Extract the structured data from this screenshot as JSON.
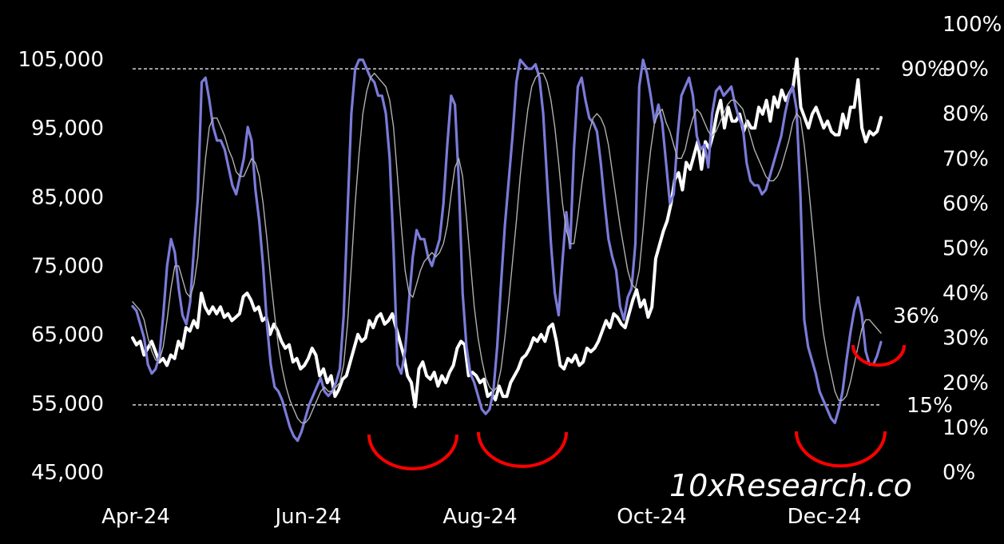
{
  "chart_data": {
    "type": "line",
    "title": "",
    "x_ticks": [
      "Apr-24",
      "Jun-24",
      "Aug-24",
      "Oct-24",
      "Dec-24"
    ],
    "y_left": {
      "ticks": [
        "105,000",
        "95,000",
        "85,000",
        "75,000",
        "65,000",
        "55,000",
        "45,000"
      ],
      "range": [
        45000,
        105000
      ]
    },
    "y_right": {
      "ticks": [
        "100%",
        "90%",
        "80%",
        "70%",
        "60%",
        "50%",
        "40%",
        "30%",
        "20%",
        "10%",
        "0%"
      ],
      "range": [
        0,
        100
      ]
    },
    "reference_lines": [
      {
        "axis": "right",
        "value": 90,
        "label": "90%",
        "style": "dashed"
      },
      {
        "axis": "right",
        "value": 15,
        "label": "15%",
        "style": "dashed"
      }
    ],
    "annotations": [
      {
        "text": "36%"
      }
    ],
    "watermark": "10xResearch.co",
    "series": [
      {
        "axis": "left",
        "color": "#ffffff",
        "values": [
          64500,
          63500,
          64000,
          62000,
          63000,
          64000,
          62500,
          61000,
          61500,
          60500,
          62000,
          61500,
          64000,
          63000,
          66000,
          65500,
          67000,
          66000,
          71000,
          69000,
          68000,
          69000,
          68000,
          69000,
          67500,
          68000,
          67000,
          67500,
          68000,
          70500,
          71000,
          70000,
          68500,
          69000,
          67000,
          67500,
          65000,
          66500,
          65500,
          64000,
          63000,
          63500,
          61000,
          61500,
          60000,
          60500,
          61500,
          63000,
          62000,
          59000,
          60000,
          58000,
          59000,
          56000,
          57000,
          58500,
          59000,
          61000,
          63000,
          65000,
          64000,
          64500,
          67000,
          66000,
          67500,
          68000,
          66500,
          67000,
          68000,
          66000,
          64000,
          62000,
          59000,
          58000,
          54500,
          60000,
          61000,
          59000,
          58500,
          59500,
          57500,
          59000,
          58000,
          59500,
          60500,
          63000,
          64000,
          63500,
          59000,
          59500,
          59000,
          58000,
          58500,
          56000,
          56500,
          55500,
          57500,
          56000,
          56000,
          58000,
          59000,
          60000,
          61500,
          62000,
          63000,
          64500,
          64000,
          65000,
          64000,
          66000,
          66500,
          64000,
          60500,
          60000,
          61500,
          61000,
          62000,
          60500,
          61000,
          63000,
          62500,
          63000,
          64000,
          65500,
          67000,
          66000,
          68000,
          67500,
          66500,
          66000,
          68000,
          70000,
          71500,
          69000,
          70000,
          67500,
          69000,
          76000,
          78000,
          80000,
          81500,
          84000,
          87500,
          88500,
          86000,
          90000,
          89000,
          91000,
          93000,
          89000,
          93000,
          92000,
          94000,
          97000,
          99000,
          95000,
          98000,
          96000,
          96000,
          97000,
          94500,
          96000,
          95000,
          95000,
          98000,
          97000,
          99000,
          96000,
          99500,
          98000,
          100500,
          99000,
          100000,
          101000,
          105000,
          98000,
          96500,
          95000,
          97000,
          98000,
          96500,
          95000,
          96000,
          94500,
          94000,
          94000,
          97000,
          95000,
          98000,
          98000,
          102000,
          95000,
          93000,
          94500,
          94000,
          94500,
          96500
        ]
      },
      {
        "axis": "right",
        "color": "#7b7bd9",
        "values": [
          37,
          36,
          33,
          30,
          24,
          22,
          23,
          26,
          35,
          46,
          52,
          49,
          41,
          35,
          33,
          38,
          50,
          61,
          87,
          88,
          83,
          77,
          74,
          74,
          72,
          68,
          64,
          62,
          66,
          70,
          77,
          74,
          63,
          56,
          46,
          33,
          24,
          19,
          18,
          16,
          13,
          10,
          8,
          7,
          9,
          12,
          15,
          17,
          19,
          21,
          18,
          17,
          18,
          20,
          23,
          35,
          58,
          80,
          90,
          92,
          92,
          90,
          88,
          87,
          84,
          84,
          80,
          70,
          50,
          24,
          22,
          27,
          38,
          48,
          54,
          52,
          52,
          48,
          46,
          49,
          52,
          60,
          73,
          84,
          82,
          65,
          40,
          28,
          22,
          20,
          17,
          14,
          13,
          14,
          18,
          28,
          42,
          55,
          65,
          75,
          87,
          92,
          91,
          90,
          90,
          91,
          88,
          80,
          65,
          51,
          40,
          35,
          47,
          58,
          50,
          72,
          86,
          88,
          83,
          79,
          78,
          76,
          69,
          60,
          52,
          48,
          45,
          37,
          34,
          39,
          41,
          51,
          86,
          92,
          89,
          84,
          78,
          82,
          78,
          69,
          60,
          62,
          75,
          84,
          86,
          88,
          84,
          75,
          72,
          73,
          68,
          80,
          85,
          86,
          84,
          85,
          86,
          82,
          79,
          77,
          69,
          65,
          64,
          64,
          62,
          63,
          66,
          69,
          72,
          75,
          80,
          84,
          86,
          81,
          62,
          34,
          28,
          25,
          22,
          18,
          16,
          14,
          12,
          11,
          14,
          18,
          25,
          31,
          36,
          39,
          35,
          27,
          24,
          24,
          26,
          29
        ]
      },
      {
        "axis": "right",
        "color": "#b0b0b0",
        "values": [
          38,
          37,
          36,
          34,
          30,
          27,
          25,
          25,
          28,
          34,
          41,
          46,
          46,
          43,
          40,
          39,
          42,
          48,
          60,
          70,
          77,
          79,
          79,
          77,
          75,
          72,
          70,
          67,
          66,
          66,
          68,
          70,
          69,
          66,
          60,
          52,
          43,
          35,
          28,
          23,
          19,
          16,
          14,
          12,
          11,
          11,
          12,
          14,
          16,
          18,
          19,
          18,
          18,
          19,
          20,
          24,
          33,
          46,
          60,
          71,
          80,
          85,
          88,
          89,
          88,
          87,
          86,
          83,
          77,
          66,
          55,
          45,
          40,
          39,
          42,
          45,
          47,
          48,
          49,
          48,
          49,
          51,
          55,
          62,
          68,
          70,
          66,
          57,
          47,
          37,
          30,
          25,
          21,
          19,
          18,
          19,
          23,
          30,
          38,
          47,
          56,
          66,
          74,
          81,
          86,
          88,
          89,
          89,
          87,
          83,
          77,
          69,
          60,
          54,
          51,
          51,
          57,
          64,
          70,
          76,
          79,
          80,
          79,
          77,
          73,
          67,
          61,
          55,
          50,
          45,
          42,
          41,
          45,
          54,
          64,
          72,
          78,
          80,
          81,
          78,
          76,
          73,
          70,
          70,
          72,
          76,
          79,
          81,
          80,
          78,
          76,
          75,
          76,
          78,
          80,
          82,
          83,
          83,
          82,
          81,
          78,
          75,
          72,
          70,
          68,
          66,
          65,
          65,
          66,
          68,
          71,
          74,
          78,
          80,
          79,
          73,
          65,
          56,
          47,
          38,
          31,
          26,
          22,
          18,
          16,
          16,
          17,
          20,
          24,
          28,
          32,
          34,
          34,
          33,
          32,
          31
        ]
      }
    ]
  }
}
